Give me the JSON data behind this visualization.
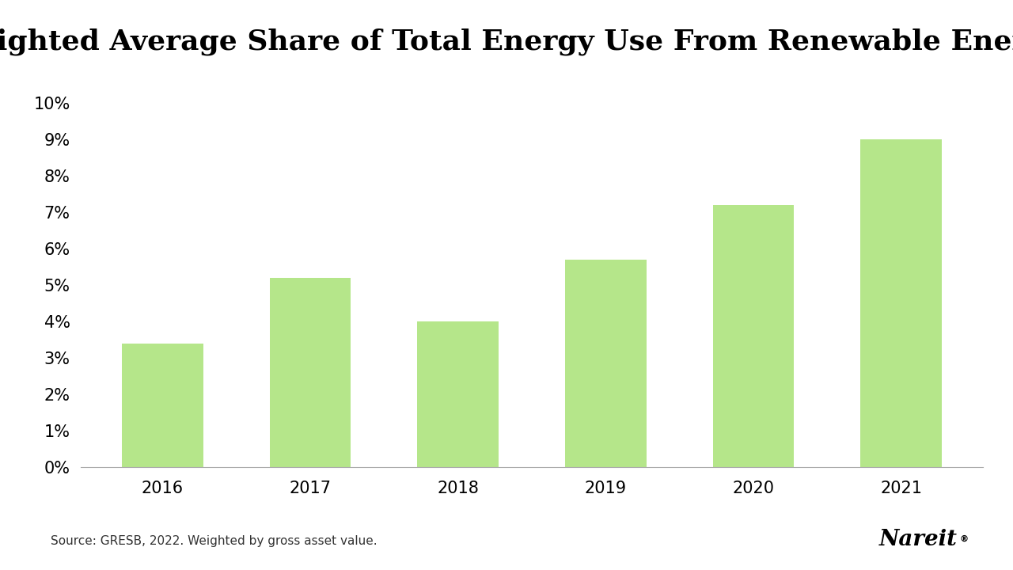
{
  "title": "Weighted Average Share of Total Energy Use From Renewable Energy",
  "categories": [
    "2016",
    "2017",
    "2018",
    "2019",
    "2020",
    "2021"
  ],
  "values": [
    0.034,
    0.052,
    0.04,
    0.057,
    0.072,
    0.09
  ],
  "bar_color": "#b5e68a",
  "background_color": "#ffffff",
  "ylim": [
    0,
    0.1
  ],
  "yticks": [
    0.0,
    0.01,
    0.02,
    0.03,
    0.04,
    0.05,
    0.06,
    0.07,
    0.08,
    0.09,
    0.1
  ],
  "title_fontsize": 26,
  "title_fontweight": "bold",
  "tick_fontsize": 15,
  "footer_text": "Source: GRESB, 2022. Weighted by gross asset value.",
  "footer_fontsize": 11,
  "nareit_text": "Nareit",
  "nareit_registered": "®",
  "nareit_fontsize": 20
}
